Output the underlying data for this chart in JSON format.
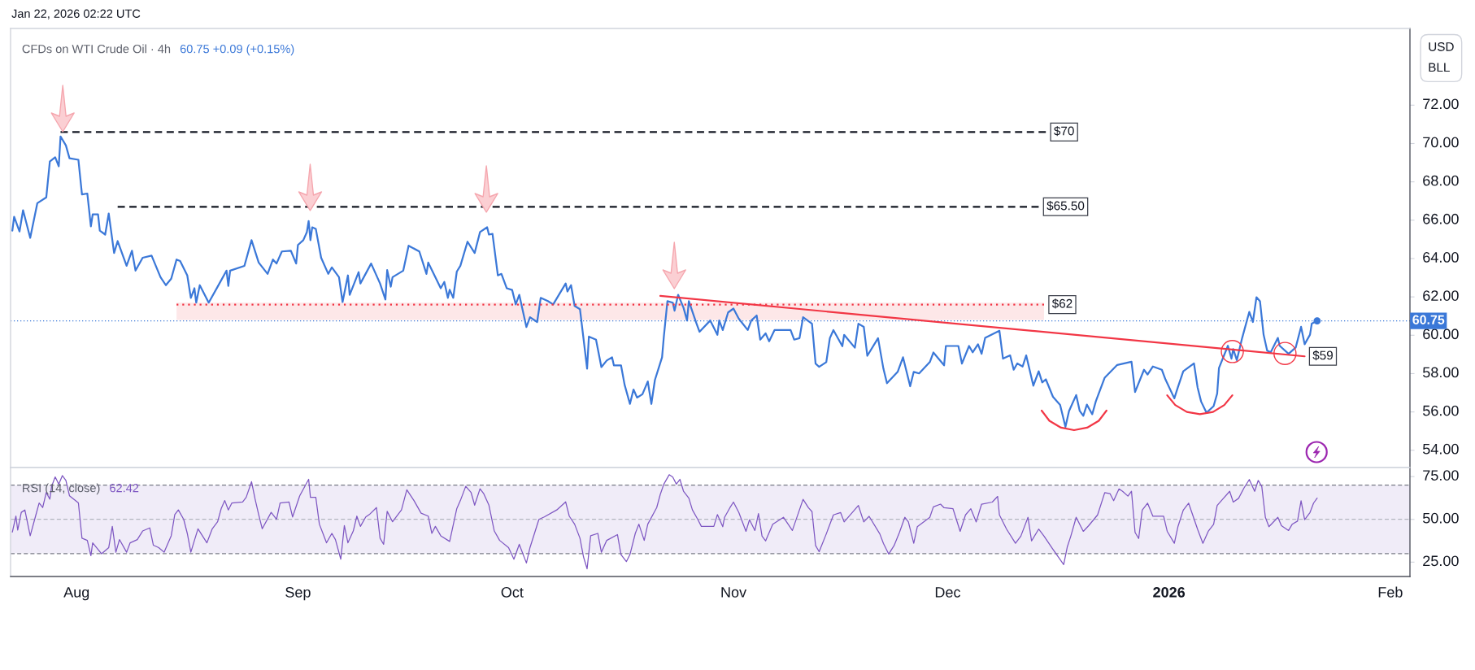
{
  "chart_data": [
    {
      "type": "line",
      "title": "CFDs on WTI Crude Oil · 4h",
      "subtitle": "60.75 +0.09 (+0.15%)",
      "ylabel": "USD\nBLL",
      "annotations": [
        "Jan 22, 2026 02:22 UTC"
      ],
      "xlim": [
        "2025-07-22T18:00",
        "2026-02-03T18:00"
      ],
      "ylim": [
        53.1,
        76.0
      ],
      "yticks": [
        {
          "value": 54,
          "label": "54.00"
        },
        {
          "value": 56,
          "label": "56.00"
        },
        {
          "value": 58,
          "label": "58.00"
        },
        {
          "value": 60,
          "label": "60.00"
        },
        {
          "value": 62,
          "label": "62.00"
        },
        {
          "value": 64,
          "label": "64.00"
        },
        {
          "value": 66,
          "label": "66.00"
        },
        {
          "value": 68,
          "label": "68.00"
        },
        {
          "value": 70,
          "label": "70.00"
        },
        {
          "value": 72,
          "label": "72.00"
        }
      ],
      "tick_labels": "y",
      "ref_lines": [
        {
          "axis": "y",
          "value": 60.75,
          "label": "60.75",
          "color": "#3b78d8",
          "line_style": "dotted"
        }
      ],
      "series": [
        {
          "color": "#3b78d8",
          "x": [
            "2025-07-23T00:00",
            "2025-07-23T06:00",
            "2025-07-24T00:00",
            "2025-07-24T12:00",
            "2025-07-25T12:00",
            "2025-07-26T12:00",
            "2025-07-27T18:00",
            "2025-07-28T06:00",
            "2025-07-29T00:00",
            "2025-07-29T12:00",
            "2025-07-29T18:00",
            "2025-07-30T12:00",
            "2025-07-31T00:00",
            "2025-08-01T06:00",
            "2025-08-01T18:00",
            "2025-08-02T12:00",
            "2025-08-03T00:00",
            "2025-08-03T06:00",
            "2025-08-04T00:00",
            "2025-08-04T06:00",
            "2025-08-05T00:00",
            "2025-08-05T12:00",
            "2025-08-06T06:00",
            "2025-08-06T18:00",
            "2025-08-08T00:00",
            "2025-08-08T18:00",
            "2025-08-09T06:00",
            "2025-08-10T06:00",
            "2025-08-11T12:00",
            "2025-08-12T18:00",
            "2025-08-13T12:00",
            "2025-08-14T06:00",
            "2025-08-15T00:00",
            "2025-08-15T12:00",
            "2025-08-16T12:00",
            "2025-08-17T00:00",
            "2025-08-17T12:00",
            "2025-08-17T18:00",
            "2025-08-18T06:00",
            "2025-08-19T12:00",
            "2025-08-20T18:00",
            "2025-08-22T00:00",
            "2025-08-22T06:00",
            "2025-08-22T12:00",
            "2025-08-24T12:00",
            "2025-08-25T12:00",
            "2025-08-26T12:00",
            "2025-08-27T18:00",
            "2025-08-28T12:00",
            "2025-08-29T00:00",
            "2025-08-29T18:00",
            "2025-08-31T00:00",
            "2025-08-31T18:00",
            "2025-09-01T00:00",
            "2025-09-01T18:00",
            "2025-09-02T06:00",
            "2025-09-02T12:00",
            "2025-09-02T18:00",
            "2025-09-03T00:00",
            "2025-09-03T12:00",
            "2025-09-04T06:00",
            "2025-09-05T06:00",
            "2025-09-05T18:00",
            "2025-09-06T18:00",
            "2025-09-07T06:00",
            "2025-09-08T00:00",
            "2025-09-08T06:00",
            "2025-09-09T12:00",
            "2025-09-09T18:00",
            "2025-09-11T06:00",
            "2025-09-12T12:00",
            "2025-09-13T06:00",
            "2025-09-13T12:00",
            "2025-09-14T00:00",
            "2025-09-14T06:00",
            "2025-09-15T18:00",
            "2025-09-16T12:00",
            "2025-09-18T00:00",
            "2025-09-19T00:00",
            "2025-09-19T06:00",
            "2025-09-21T00:00",
            "2025-09-21T12:00",
            "2025-09-22T00:00",
            "2025-09-22T06:00",
            "2025-09-22T18:00",
            "2025-09-23T06:00",
            "2025-09-23T18:00",
            "2025-09-24T18:00",
            "2025-09-25T18:00",
            "2025-09-26T12:00",
            "2025-09-27T12:00",
            "2025-09-27T18:00",
            "2025-09-28T06:00",
            "2025-09-29T00:00",
            "2025-09-29T12:00",
            "2025-09-30T06:00",
            "2025-10-01T00:00",
            "2025-10-01T12:00",
            "2025-10-02T00:00",
            "2025-10-03T00:00",
            "2025-10-03T12:00",
            "2025-10-04T12:00",
            "2025-10-05T00:00",
            "2025-10-06T00:00",
            "2025-10-06T18:00",
            "2025-10-08T12:00",
            "2025-10-08T18:00",
            "2025-10-09T06:00",
            "2025-10-09T18:00",
            "2025-10-10T12:00",
            "2025-10-11T12:00",
            "2025-10-11T18:00",
            "2025-10-12T18:00",
            "2025-10-13T12:00",
            "2025-10-14T06:00",
            "2025-10-15T00:00",
            "2025-10-15T06:00",
            "2025-10-16T06:00",
            "2025-10-16T18:00",
            "2025-10-17T12:00",
            "2025-10-18T00:00",
            "2025-10-18T12:00",
            "2025-10-19T06:00",
            "2025-10-20T00:00",
            "2025-10-20T12:00",
            "2025-10-21T00:00",
            "2025-10-22T00:00",
            "2025-10-22T06:00",
            "2025-10-22T18:00",
            "2025-10-23T12:00",
            "2025-10-23T18:00",
            "2025-10-24T06:00",
            "2025-10-25T00:00",
            "2025-10-25T12:00",
            "2025-10-25T18:00",
            "2025-10-26T18:00",
            "2025-10-27T06:00",
            "2025-10-28T18:00",
            "2025-10-29T18:00",
            "2025-10-30T00:00",
            "2025-10-30T12:00",
            "2025-10-31T06:00",
            "2025-11-01T00:00",
            "2025-11-01T18:00",
            "2025-11-03T00:00",
            "2025-11-03T12:00",
            "2025-11-04T06:00",
            "2025-11-04T18:00",
            "2025-11-05T12:00",
            "2025-11-06T00:00",
            "2025-11-06T18:00",
            "2025-11-09T00:00",
            "2025-11-09T12:00",
            "2025-11-10T06:00",
            "2025-11-10T18:00",
            "2025-11-12T00:00",
            "2025-11-12T12:00",
            "2025-11-13T00:00",
            "2025-11-14T00:00",
            "2025-11-14T12:00",
            "2025-11-15T00:00",
            "2025-11-16T06:00",
            "2025-11-16T12:00",
            "2025-11-18T00:00",
            "2025-11-18T12:00",
            "2025-11-19T06:00",
            "2025-11-19T18:00",
            "2025-11-21T06:00",
            "2025-11-22T00:00",
            "2025-11-22T12:00",
            "2025-11-24T00:00",
            "2025-11-24T18:00",
            "2025-11-25T18:00",
            "2025-11-26T06:00",
            "2025-11-27T00:00",
            "2025-11-28T12:00",
            "2025-11-29T00:00",
            "2025-11-30T12:00",
            "2025-11-30T18:00",
            "2025-12-02T12:00",
            "2025-12-03T00:00",
            "2025-12-04T00:00",
            "2025-12-04T12:00",
            "2025-12-05T06:00",
            "2025-12-05T18:00",
            "2025-12-06T06:00",
            "2025-12-08T06:00",
            "2025-12-08T18:00",
            "2025-12-09T18:00",
            "2025-12-10T06:00",
            "2025-12-10T18:00",
            "2025-12-11T12:00",
            "2025-12-12T00:00",
            "2025-12-13T00:00",
            "2025-12-13T18:00",
            "2025-12-14T06:00",
            "2025-12-14T18:00",
            "2025-12-15T18:00",
            "2025-12-16T18:00",
            "2025-12-17T12:00",
            "2025-12-18T00:00",
            "2025-12-19T00:00",
            "2025-12-19T12:00",
            "2025-12-20T00:00",
            "2025-12-20T12:00",
            "2025-12-21T06:00",
            "2025-12-21T18:00",
            "2025-12-23T00:00",
            "2025-12-24T18:00",
            "2025-12-26T18:00",
            "2025-12-27T06:00",
            "2025-12-28T12:00",
            "2025-12-29T00:00",
            "2025-12-29T18:00",
            "2025-12-31T00:00",
            "2025-12-31T12:00",
            "2026-01-01T18:00",
            "2026-01-02T06:00",
            "2026-01-03T00:00",
            "2026-01-04T12:00",
            "2026-01-05T00:00",
            "2026-01-05T12:00",
            "2026-01-06T06:00",
            "2026-01-07T06:00",
            "2026-01-07T18:00",
            "2026-01-08T00:00",
            "2026-01-09T06:00",
            "2026-01-09T18:00",
            "2026-01-10T00:00",
            "2026-01-10T12:00",
            "2026-01-11T06:00",
            "2026-01-12T06:00",
            "2026-01-12T18:00",
            "2026-01-13T06:00",
            "2026-01-13T18:00",
            "2026-01-14T06:00",
            "2026-01-14T18:00",
            "2026-01-15T06:00",
            "2026-01-16T06:00",
            "2026-01-16T12:00",
            "2026-01-17T18:00",
            "2026-01-18T18:00",
            "2026-01-19T12:00",
            "2026-01-20T00:00",
            "2026-01-20T18:00",
            "2026-01-21T00:00",
            "2026-01-21T18:00"
          ],
          "values": [
            65.46,
            66.18,
            65.41,
            66.52,
            65.08,
            66.89,
            67.19,
            69.06,
            69.28,
            68.81,
            70.37,
            69.9,
            69.23,
            69.15,
            67.34,
            67.39,
            65.68,
            66.3,
            66.3,
            65.46,
            65.25,
            66.35,
            64.29,
            64.91,
            63.62,
            64.41,
            63.37,
            64.04,
            64.15,
            63.03,
            62.61,
            62.95,
            63.95,
            63.87,
            63.12,
            61.95,
            62.45,
            61.7,
            62.61,
            61.7,
            62.53,
            63.37,
            62.57,
            63.37,
            63.62,
            64.96,
            63.79,
            63.2,
            63.95,
            63.74,
            64.37,
            64.41,
            63.74,
            64.71,
            64.96,
            65.38,
            65.96,
            64.96,
            65.63,
            65.55,
            64.04,
            63.2,
            63.54,
            63.03,
            61.73,
            63.12,
            62.11,
            63.29,
            62.7,
            63.74,
            62.7,
            61.86,
            63.4,
            62.53,
            63.03,
            63.37,
            64.67,
            64.37,
            63.2,
            63.79,
            62.45,
            62.78,
            61.95,
            62.37,
            61.95,
            63.32,
            63.62,
            64.88,
            64.29,
            65.38,
            65.63,
            65.25,
            65.29,
            63.12,
            63.2,
            62.45,
            62.36,
            61.61,
            62.11,
            60.43,
            60.94,
            60.69,
            61.95,
            61.78,
            61.61,
            62.7,
            62.28,
            62.61,
            61.53,
            61.36,
            58.26,
            59.93,
            59.77,
            58.34,
            58.68,
            58.85,
            58.43,
            58.43,
            57.42,
            56.42,
            57.17,
            56.75,
            56.92,
            57.59,
            56.42,
            57.67,
            58.85,
            59.93,
            61.78,
            61.7,
            61.28,
            62.11,
            61.44,
            60.77,
            61.78,
            60.69,
            60.18,
            60.77,
            60.02,
            60.77,
            60.27,
            61.19,
            61.39,
            60.86,
            60.27,
            60.77,
            61.03,
            59.77,
            60.1,
            59.68,
            60.27,
            60.27,
            59.77,
            59.85,
            60.94,
            60.6,
            58.52,
            58.35,
            58.6,
            59.85,
            60.27,
            59.43,
            60.02,
            59.35,
            60.6,
            60.44,
            58.93,
            59.85,
            58.26,
            57.5,
            58.09,
            58.85,
            57.34,
            58.09,
            58.01,
            58.6,
            59.1,
            58.43,
            59.44,
            59.44,
            58.52,
            59.44,
            59.11,
            59.53,
            59.03,
            59.86,
            60.23,
            58.78,
            58.95,
            58.2,
            58.53,
            58.37,
            58.95,
            57.37,
            58.12,
            57.54,
            57.7,
            56.79,
            56.37,
            55.22,
            56.05,
            56.88,
            56.05,
            55.8,
            56.38,
            55.88,
            56.55,
            57.79,
            58.45,
            58.62,
            57.04,
            58.2,
            57.95,
            58.37,
            58.2,
            57.7,
            56.71,
            57.29,
            58.12,
            58.53,
            57.29,
            56.54,
            55.96,
            56.3,
            56.96,
            58.29,
            59.45,
            58.78,
            59.28,
            58.7,
            59.86,
            61.22,
            60.69,
            61.98,
            61.77,
            60.03,
            59.2,
            59.11,
            59.86,
            59.45,
            59.03,
            59.36,
            60.44,
            59.53,
            60.03,
            60.61,
            60.75
          ]
        },
        {
          "type": "scatter",
          "color": "#3b78d8",
          "x": [
            "2026-01-21T18:00"
          ],
          "values": [
            60.75
          ]
        },
        {
          "name": "$70",
          "color": "#131722",
          "line_style": "dashed",
          "x": [
            "2025-07-29T18:00",
            "2025-12-14T18:00"
          ],
          "values": [
            70.6,
            70.6
          ]
        },
        {
          "name": "$65.50",
          "color": "#131722",
          "line_style": "dashed",
          "x": [
            "2025-08-06T18:00",
            "2025-12-13T18:00"
          ],
          "values": [
            66.7,
            66.7
          ]
        },
        {
          "name": "$62",
          "color": "#f23645",
          "line_style": "dotted",
          "x": [
            "2025-08-15T00:00",
            "2025-12-14T12:00"
          ],
          "values": [
            61.6,
            61.6
          ],
          "lower": [
            60.8,
            60.8
          ],
          "upper": [
            61.7,
            61.7
          ]
        },
        {
          "color": "#f23645",
          "x": [
            "2025-12-14T04:00",
            "2025-12-15T06:00",
            "2025-12-16T21:00",
            "2025-12-18T17:00",
            "2025-12-20T13:00",
            "2025-12-22T04:00",
            "2025-12-23T06:00"
          ],
          "values": [
            56.07,
            55.54,
            55.18,
            55.05,
            55.18,
            55.54,
            56.07
          ]
        },
        {
          "color": "#f23645",
          "x": [
            "2025-12-31T18:00",
            "2026-01-01T21:00",
            "2026-01-03T12:00",
            "2026-01-05T08:00",
            "2026-01-07T04:00",
            "2026-01-08T18:00",
            "2026-01-09T21:00"
          ],
          "values": [
            56.87,
            56.36,
            56.0,
            55.88,
            56.0,
            56.36,
            56.87
          ]
        },
        {
          "name": "$59",
          "color": "#f23645",
          "x": [
            "2025-10-21T18:00",
            "2026-01-20T00:00"
          ],
          "values": [
            62.05,
            58.9
          ]
        },
        {
          "type": "bubble",
          "color": "#f23645",
          "x": [
            "2026-01-09T21:00",
            "2026-01-17T06:00"
          ],
          "values": [
            59.15,
            59.05
          ],
          "sizes": [
            1,
            1
          ]
        }
      ]
    },
    {
      "type": "line",
      "title": "RSI (14, close)",
      "subtitle": "62.42",
      "xlim": [
        "2025-07-22T18:00",
        "2026-02-03T18:00"
      ],
      "ylim": [
        16.6,
        80.3
      ],
      "yticks": [
        {
          "value": 25,
          "label": "25.00"
        },
        {
          "value": 50,
          "label": "50.00"
        },
        {
          "value": 75,
          "label": "75.00"
        }
      ],
      "xticks": [
        {
          "value": "2025-08-01",
          "label": "Aug"
        },
        {
          "value": "2025-09-01",
          "label": "Sep"
        },
        {
          "value": "2025-10-01",
          "label": "Oct"
        },
        {
          "value": "2025-11-01",
          "label": "Nov"
        },
        {
          "value": "2025-12-01",
          "label": "Dec"
        },
        {
          "value": "2026-01-01",
          "label": "2026"
        },
        {
          "value": "2026-02-01",
          "label": "Feb"
        }
      ],
      "bands": [
        {
          "axis": "y",
          "from": 30,
          "to": 70,
          "color": "#f0ecf8"
        }
      ],
      "ref_lines": [
        {
          "axis": "y",
          "value": 70,
          "color": "#787b86",
          "line_style": "dashed"
        },
        {
          "axis": "y",
          "value": 50,
          "color": "#b2b5be",
          "line_style": "dashed"
        },
        {
          "axis": "y",
          "value": 30,
          "color": "#787b86",
          "line_style": "dashed"
        }
      ],
      "series": [
        {
          "color": "#7e57c2",
          "x": [
            "2025-07-23T00:00",
            "2025-07-23T12:00",
            "2025-07-23T18:00",
            "2025-07-24T06:00",
            "2025-07-24T18:00",
            "2025-07-25T12:00",
            "2025-07-26T06:00",
            "2025-07-26T18:00",
            "2025-07-27T06:00",
            "2025-07-27T18:00",
            "2025-07-28T06:00",
            "2025-07-28T12:00",
            "2025-07-29T00:00",
            "2025-07-29T12:00",
            "2025-07-30T00:00",
            "2025-07-30T12:00",
            "2025-07-31T00:00",
            "2025-08-01T06:00",
            "2025-08-01T18:00",
            "2025-08-02T12:00",
            "2025-08-03T00:00",
            "2025-08-03T06:00",
            "2025-08-04T12:00",
            "2025-08-05T12:00",
            "2025-08-06T00:00",
            "2025-08-06T12:00",
            "2025-08-07T00:00",
            "2025-08-08T00:00",
            "2025-08-08T12:00",
            "2025-08-09T12:00",
            "2025-08-10T06:00",
            "2025-08-11T06:00",
            "2025-08-11T18:00",
            "2025-08-12T12:00",
            "2025-08-13T06:00",
            "2025-08-14T06:00",
            "2025-08-14T18:00",
            "2025-08-15T06:00",
            "2025-08-16T00:00",
            "2025-08-16T12:00",
            "2025-08-17T00:00",
            "2025-08-17T12:00",
            "2025-08-18T00:00",
            "2025-08-19T06:00",
            "2025-08-20T00:00",
            "2025-08-20T18:00",
            "2025-08-21T06:00",
            "2025-08-21T18:00",
            "2025-08-22T06:00",
            "2025-08-22T18:00",
            "2025-08-24T06:00",
            "2025-08-24T18:00",
            "2025-08-25T12:00",
            "2025-08-26T00:00",
            "2025-08-26T12:00",
            "2025-08-27T00:00",
            "2025-08-28T06:00",
            "2025-08-29T00:00",
            "2025-08-29T12:00",
            "2025-08-30T18:00",
            "2025-08-31T06:00",
            "2025-09-01T06:00",
            "2025-09-02T12:00",
            "2025-09-02T18:00",
            "2025-09-03T12:00",
            "2025-09-04T00:00",
            "2025-09-04T12:00",
            "2025-09-05T00:00",
            "2025-09-05T18:00",
            "2025-09-06T06:00",
            "2025-09-07T00:00",
            "2025-09-07T12:00",
            "2025-09-08T00:00",
            "2025-09-08T18:00",
            "2025-09-09T06:00",
            "2025-09-09T18:00",
            "2025-09-10T12:00",
            "2025-09-11T00:00",
            "2025-09-12T00:00",
            "2025-09-12T12:00",
            "2025-09-13T00:00",
            "2025-09-13T12:00",
            "2025-09-14T06:00",
            "2025-09-15T12:00",
            "2025-09-16T06:00",
            "2025-09-17T06:00",
            "2025-09-18T06:00",
            "2025-09-19T06:00",
            "2025-09-19T18:00",
            "2025-09-20T06:00",
            "2025-09-21T00:00",
            "2025-09-22T06:00",
            "2025-09-23T06:00",
            "2025-09-23T18:00",
            "2025-09-24T12:00",
            "2025-09-25T06:00",
            "2025-09-25T18:00",
            "2025-09-26T12:00",
            "2025-09-27T00:00",
            "2025-09-27T18:00",
            "2025-09-28T12:00",
            "2025-09-29T06:00",
            "2025-09-30T12:00",
            "2025-10-01T06:00",
            "2025-10-02T00:00",
            "2025-10-03T00:00",
            "2025-10-03T12:00",
            "2025-10-04T18:00",
            "2025-10-05T12:00",
            "2025-10-07T06:00",
            "2025-10-08T12:00",
            "2025-10-09T00:00",
            "2025-10-09T18:00",
            "2025-10-10T12:00",
            "2025-10-11T00:00",
            "2025-10-11T12:00",
            "2025-10-12T00:00",
            "2025-10-13T00:00",
            "2025-10-13T12:00",
            "2025-10-14T06:00",
            "2025-10-15T18:00",
            "2025-10-16T06:00",
            "2025-10-17T00:00",
            "2025-10-17T12:00",
            "2025-10-18T06:00",
            "2025-10-18T18:00",
            "2025-10-19T12:00",
            "2025-10-20T00:00",
            "2025-10-21T06:00",
            "2025-10-21T18:00",
            "2025-10-22T06:00",
            "2025-10-23T00:00",
            "2025-10-23T12:00",
            "2025-10-24T00:00",
            "2025-10-24T12:00",
            "2025-10-25T00:00",
            "2025-10-25T18:00",
            "2025-10-26T06:00",
            "2025-10-27T00:00",
            "2025-10-27T12:00",
            "2025-10-29T06:00",
            "2025-10-29T18:00",
            "2025-10-30T12:00",
            "2025-10-30T18:00",
            "2025-10-31T12:00",
            "2025-11-01T00:00",
            "2025-11-01T18:00",
            "2025-11-02T18:00",
            "2025-11-03T06:00",
            "2025-11-04T00:00",
            "2025-11-04T12:00",
            "2025-11-05T00:00",
            "2025-11-05T12:00",
            "2025-11-06T12:00",
            "2025-11-08T00:00",
            "2025-11-09T06:00",
            "2025-11-10T18:00",
            "2025-11-11T12:00",
            "2025-11-12T00:00",
            "2025-11-12T12:00",
            "2025-11-13T00:00",
            "2025-11-14T00:00",
            "2025-11-15T00:00",
            "2025-11-16T00:00",
            "2025-11-16T12:00",
            "2025-11-18T12:00",
            "2025-11-19T06:00",
            "2025-11-20T00:00",
            "2025-11-21T12:00",
            "2025-11-22T00:00",
            "2025-11-22T18:00",
            "2025-11-23T12:00",
            "2025-11-24T06:00",
            "2025-11-25T00:00",
            "2025-11-25T12:00",
            "2025-11-26T06:00",
            "2025-11-26T18:00",
            "2025-11-28T12:00",
            "2025-11-29T00:00",
            "2025-11-30T00:00",
            "2025-11-30T12:00",
            "2025-12-01T18:00",
            "2025-12-02T18:00",
            "2025-12-03T12:00",
            "2025-12-04T06:00",
            "2025-12-05T00:00",
            "2025-12-05T18:00",
            "2025-12-07T06:00",
            "2025-12-08T00:00",
            "2025-12-08T06:00",
            "2025-12-09T06:00",
            "2025-12-10T12:00",
            "2025-12-11T06:00",
            "2025-12-12T06:00",
            "2025-12-12T18:00",
            "2025-12-13T18:00",
            "2025-12-14T12:00",
            "2025-12-15T18:00",
            "2025-12-17T06:00",
            "2025-12-17T18:00",
            "2025-12-18T06:00",
            "2025-12-19T00:00",
            "2025-12-20T00:00",
            "2025-12-20T18:00",
            "2025-12-22T00:00",
            "2025-12-23T00:00",
            "2025-12-23T18:00",
            "2025-12-24T06:00",
            "2025-12-25T00:00",
            "2025-12-25T12:00",
            "2025-12-26T06:00",
            "2025-12-26T18:00",
            "2025-12-27T06:00",
            "2025-12-27T18:00",
            "2025-12-28T06:00",
            "2025-12-29T00:00",
            "2025-12-29T18:00",
            "2025-12-31T06:00",
            "2025-12-31T18:00",
            "2026-01-01T18:00",
            "2026-01-02T06:00",
            "2026-01-03T00:00",
            "2026-01-03T18:00",
            "2026-01-05T00:00",
            "2026-01-05T18:00",
            "2026-01-06T12:00",
            "2026-01-07T06:00",
            "2026-01-07T18:00",
            "2026-01-08T12:00",
            "2026-01-09T12:00",
            "2026-01-10T00:00",
            "2026-01-10T18:00",
            "2026-01-11T12:00",
            "2026-01-12T06:00",
            "2026-01-13T00:00",
            "2026-01-13T12:00",
            "2026-01-14T00:00",
            "2026-01-14T12:00",
            "2026-01-15T00:00",
            "2026-01-16T06:00",
            "2026-01-16T18:00",
            "2026-01-17T18:00",
            "2026-01-18T06:00",
            "2026-01-19T00:00",
            "2026-01-19T12:00",
            "2026-01-20T00:00",
            "2026-01-20T18:00",
            "2026-01-21T06:00",
            "2026-01-21T18:00"
          ],
          "values": [
            42.6,
            51.9,
            43.7,
            54.1,
            55.5,
            40.4,
            51.9,
            59.6,
            56.9,
            65.7,
            61.8,
            69.3,
            74.8,
            70.6,
            75.6,
            72.8,
            63.8,
            59.6,
            39.0,
            37.7,
            28.8,
            36.3,
            29.9,
            33.5,
            45.9,
            30.8,
            38.2,
            30.8,
            36.3,
            38.2,
            43.2,
            45.0,
            34.9,
            33.5,
            30.8,
            40.4,
            52.8,
            55.5,
            50.0,
            41.8,
            30.8,
            37.7,
            44.5,
            36.3,
            44.5,
            48.6,
            56.3,
            61.0,
            55.5,
            59.6,
            60.2,
            62.9,
            72.0,
            61.8,
            52.8,
            44.5,
            54.1,
            50.0,
            59.6,
            60.2,
            51.4,
            63.8,
            73.4,
            62.9,
            62.9,
            47.2,
            41.8,
            36.3,
            41.8,
            38.2,
            26.7,
            46.4,
            36.3,
            43.2,
            51.9,
            45.9,
            51.4,
            52.8,
            56.9,
            39.0,
            35.4,
            54.7,
            48.6,
            55.5,
            67.3,
            61.0,
            53.6,
            51.9,
            41.8,
            45.9,
            40.4,
            37.1,
            56.3,
            61.0,
            69.3,
            65.7,
            58.3,
            67.9,
            65.2,
            58.3,
            43.2,
            37.7,
            33.5,
            26.7,
            35.4,
            24.5,
            33.5,
            50.0,
            51.4,
            55.5,
            60.2,
            51.9,
            47.2,
            39.0,
            28.0,
            21.1,
            40.4,
            41.8,
            30.8,
            37.7,
            41.1,
            29.4,
            25.3,
            29.4,
            41.8,
            47.2,
            37.7,
            47.2,
            56.9,
            64.6,
            70.6,
            76.1,
            74.7,
            70.6,
            73.4,
            66.5,
            62.4,
            55.5,
            50.0,
            45.9,
            45.9,
            52.8,
            45.7,
            51.2,
            56.8,
            60.1,
            54.0,
            43.0,
            49.8,
            43.5,
            53.4,
            40.2,
            37.4,
            47.1,
            51.2,
            43.5,
            61.7,
            56.8,
            54.5,
            34.7,
            31.1,
            41.5,
            52.6,
            54.0,
            48.5,
            58.1,
            48.5,
            51.8,
            41.5,
            36.0,
            29.7,
            34.7,
            42.4,
            51.2,
            48.5,
            36.0,
            45.7,
            51.2,
            57.3,
            58.9,
            56.8,
            56.2,
            43.0,
            52.6,
            56.2,
            48.5,
            58.9,
            60.1,
            63.4,
            52.6,
            44.3,
            36.0,
            40.2,
            51.2,
            37.4,
            44.3,
            40.2,
            32.5,
            23.6,
            33.8,
            40.2,
            51.2,
            43.0,
            46.3,
            52.6,
            65.6,
            65.0,
            60.9,
            67.8,
            66.4,
            63.6,
            66.4,
            42.4,
            38.8,
            55.4,
            59.5,
            51.8,
            51.8,
            43.0,
            36.0,
            45.7,
            55.4,
            59.5,
            44.3,
            36.0,
            43.0,
            47.1,
            58.1,
            61.7,
            66.4,
            60.1,
            62.3,
            68.3,
            73.3,
            66.4,
            72.8,
            69.2,
            51.2,
            45.7,
            51.2,
            46.3,
            43.5,
            47.1,
            49.0,
            60.9,
            49.8,
            54.0,
            59.5,
            62.42
          ]
        }
      ]
    }
  ]
}
